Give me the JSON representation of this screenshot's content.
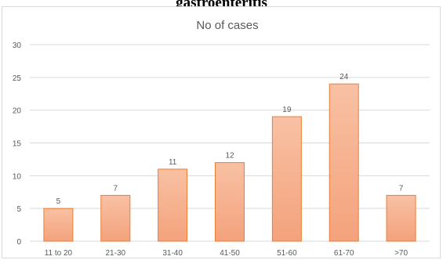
{
  "page": {
    "heading": "gastroenteritis"
  },
  "chart_data": {
    "type": "bar",
    "title": "No of cases",
    "categories": [
      "11 to 20",
      "21-30",
      "31-40",
      "41-50",
      "51-60",
      "61-70",
      ">70"
    ],
    "values": [
      5,
      7,
      11,
      12,
      19,
      24,
      7
    ],
    "series": [
      {
        "name": "No of cases",
        "values": [
          5,
          7,
          11,
          12,
          19,
          24,
          7
        ]
      }
    ],
    "ylim": [
      0,
      30
    ],
    "yticks": [
      0,
      5,
      10,
      15,
      20,
      25,
      30
    ],
    "grid": true,
    "legend": "none",
    "data_labels": true,
    "colors": {
      "bar_top": "#f8c1a4",
      "bar_bottom": "#f4a27c",
      "bar_stroke": "#ed7d31",
      "grid": "#d9d9d9",
      "axis_text": "#595959",
      "title_text": "#595959"
    }
  }
}
